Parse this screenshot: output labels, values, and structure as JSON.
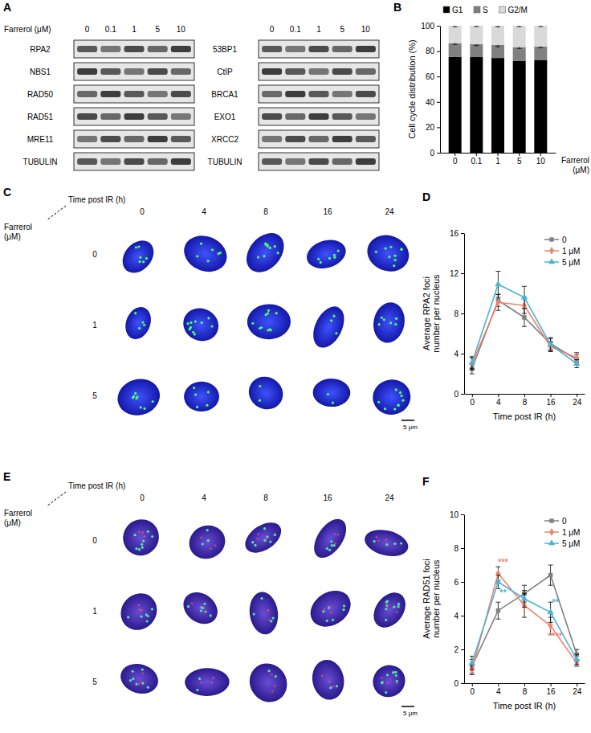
{
  "panels": [
    "A",
    "B",
    "C",
    "D",
    "E",
    "F"
  ],
  "blots": {
    "treatment": "Farrerol (μM)",
    "doses": [
      0,
      0.1,
      1,
      5,
      10
    ],
    "left": [
      "RPA2",
      "NBS1",
      "RAD50",
      "RAD51",
      "MRE11",
      "TUBULIN"
    ],
    "right": [
      "53BP1",
      "CtIP",
      "BRCA1",
      "EXO1",
      "XRCC2",
      "TUBULIN"
    ]
  },
  "micrographs": [
    {
      "time_title": "Time post IR (h)",
      "times": [
        0,
        4,
        8,
        16,
        24
      ],
      "dose_title": [
        "Farrerol",
        "(μM)"
      ],
      "doses": [
        0,
        1,
        5
      ],
      "scale_bar": "5 μm"
    },
    {
      "time_title": "Time post IR (h)",
      "times": [
        0,
        4,
        8,
        16,
        24
      ],
      "dose_title": [
        "Farrerol",
        "(μM)"
      ],
      "doses": [
        0,
        1,
        5
      ],
      "scale_bar": "5 μm"
    }
  ],
  "chart_data": [
    {
      "type": "bar",
      "stacked": true,
      "legend": "top",
      "categories": [
        "0",
        "0.1",
        "1",
        "5",
        "10"
      ],
      "xlabel": [
        "Farrerol",
        "(μM)"
      ],
      "ylabel": "Cell cycle distribution (%)",
      "ylim": [
        0,
        100
      ],
      "yticks": [
        0,
        20,
        40,
        60,
        80,
        100
      ],
      "series": [
        {
          "name": "G1",
          "color": "#000000",
          "values": [
            75.5,
            75.3,
            74.6,
            72.2,
            73.1
          ],
          "errors": [
            1.3,
            1.1,
            1.2,
            1.0,
            1.1
          ]
        },
        {
          "name": "S",
          "color": "#808080",
          "values": [
            10.8,
            10.2,
            10.4,
            11.0,
            10.6
          ],
          "errors": [
            1.0,
            1.2,
            1.5,
            1.1,
            1.0
          ]
        },
        {
          "name": "G2/M",
          "color": "#d9d9d9",
          "values": [
            13.7,
            14.5,
            15.0,
            16.8,
            16.3
          ],
          "errors": [
            0.8,
            0.7,
            0.9,
            0.8,
            0.7
          ]
        }
      ]
    },
    {
      "type": "line",
      "legend": "top-right",
      "categories": [
        "0",
        "4",
        "8",
        "16",
        "24"
      ],
      "xlabel": "Time post IR (h)",
      "ylabel": [
        "Average RPA2 foci",
        "number per nucleus"
      ],
      "ylim": [
        0,
        16
      ],
      "yticks": [
        0,
        4,
        8,
        12,
        16
      ],
      "series": [
        {
          "name": "0",
          "color": "#7f7f7f",
          "marker": "square",
          "values": [
            2.5,
            9.3,
            7.6,
            5.0,
            3.4
          ],
          "errors": [
            0.5,
            0.6,
            0.9,
            0.6,
            0.5
          ]
        },
        {
          "name": "1 μM",
          "color": "#f2826e",
          "marker": "diamond",
          "values": [
            3.0,
            9.1,
            8.8,
            4.7,
            3.6
          ],
          "errors": [
            0.6,
            0.8,
            0.8,
            0.5,
            0.5
          ]
        },
        {
          "name": "5 μM",
          "color": "#4bb4d6",
          "marker": "triangle",
          "values": [
            3.1,
            10.9,
            9.6,
            4.9,
            3.0
          ],
          "errors": [
            0.6,
            1.3,
            1.1,
            0.6,
            0.4
          ]
        }
      ]
    },
    {
      "type": "line",
      "legend": "top-right",
      "categories": [
        "0",
        "4",
        "8",
        "16",
        "24"
      ],
      "xlabel": "Time post IR (h)",
      "ylabel": [
        "Average RAD51 foci",
        "number per nucleus"
      ],
      "ylim": [
        0,
        10
      ],
      "yticks": [
        0,
        2,
        4,
        6,
        8,
        10
      ],
      "series": [
        {
          "name": "0",
          "color": "#7f7f7f",
          "marker": "square",
          "values": [
            1.0,
            4.3,
            5.3,
            6.4,
            1.7
          ],
          "errors": [
            0.4,
            0.5,
            0.5,
            0.6,
            0.3
          ]
        },
        {
          "name": "1 μM",
          "color": "#f2826e",
          "marker": "diamond",
          "values": [
            0.8,
            6.5,
            4.6,
            3.4,
            1.2
          ],
          "errors": [
            0.3,
            0.4,
            0.7,
            0.5,
            0.2
          ]
        },
        {
          "name": "5 μM",
          "color": "#4bb4d6",
          "marker": "triangle",
          "values": [
            1.2,
            6.0,
            5.0,
            4.2,
            1.4
          ],
          "errors": [
            0.4,
            0.4,
            0.5,
            0.6,
            0.3
          ]
        }
      ],
      "annotations": [
        {
          "x": "4",
          "y": 7.0,
          "text": "***",
          "color": "#f2826e"
        },
        {
          "x": "4",
          "y": 5.2,
          "text": "**",
          "color": "#4bb4d6"
        },
        {
          "x": "16",
          "y": 4.6,
          "text": "**",
          "color": "#4bb4d6"
        },
        {
          "x": "16",
          "y": 2.6,
          "text": "****",
          "color": "#f2826e"
        }
      ]
    }
  ]
}
